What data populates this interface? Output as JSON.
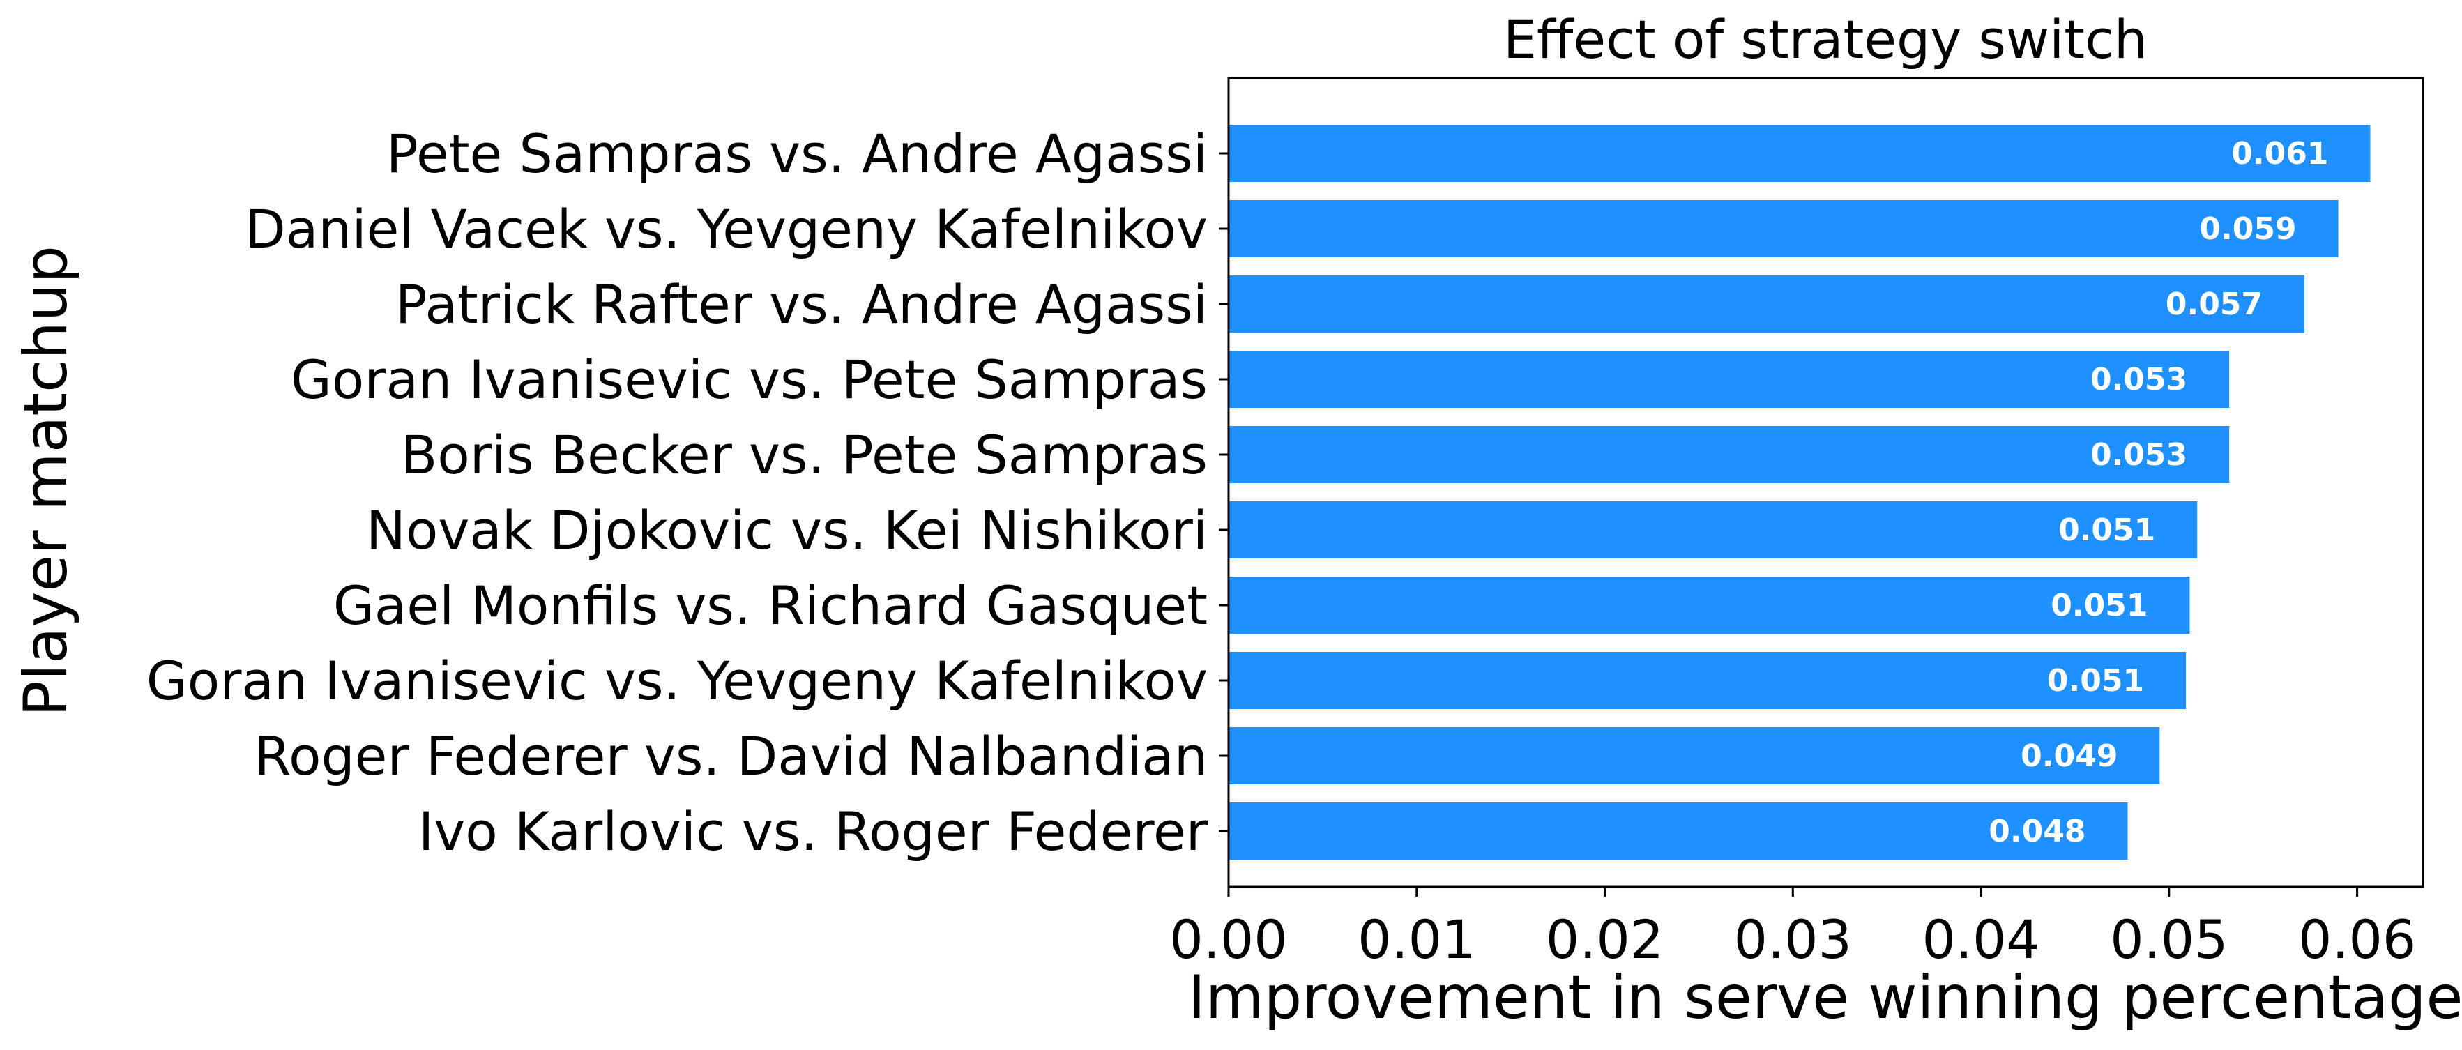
{
  "chart_data": {
    "type": "bar",
    "orientation": "horizontal",
    "title": "Effect of strategy switch",
    "xlabel": "Improvement in serve winning percentage",
    "ylabel": "Player matchup",
    "categories": [
      "Pete Sampras vs. Andre Agassi",
      "Daniel Vacek vs. Yevgeny Kafelnikov",
      "Patrick Rafter vs. Andre Agassi",
      "Goran Ivanisevic vs. Pete Sampras",
      "Boris Becker vs. Pete Sampras",
      "Novak Djokovic vs. Kei Nishikori",
      "Gael Monfils vs. Richard Gasquet",
      "Goran Ivanisevic vs. Yevgeny Kafelnikov",
      "Roger Federer vs. David Nalbandian",
      "Ivo Karlovic vs. Roger Federer"
    ],
    "values": [
      0.0607,
      0.059,
      0.0572,
      0.0532,
      0.0532,
      0.0515,
      0.0511,
      0.0509,
      0.0495,
      0.0478
    ],
    "value_labels": [
      "0.061",
      "0.059",
      "0.057",
      "0.053",
      "0.053",
      "0.051",
      "0.051",
      "0.051",
      "0.049",
      "0.048"
    ],
    "xticks": [
      "0.00",
      "0.01",
      "0.02",
      "0.03",
      "0.04",
      "0.05",
      "0.06"
    ],
    "xtick_values": [
      0,
      0.01,
      0.02,
      0.03,
      0.04,
      0.05,
      0.06
    ],
    "xlim": [
      0,
      0.0635
    ],
    "grid": false,
    "legend": "none",
    "colors": {
      "bar": "#1e90ff",
      "bar_label": "#ffffff",
      "axis": "#000000"
    }
  }
}
